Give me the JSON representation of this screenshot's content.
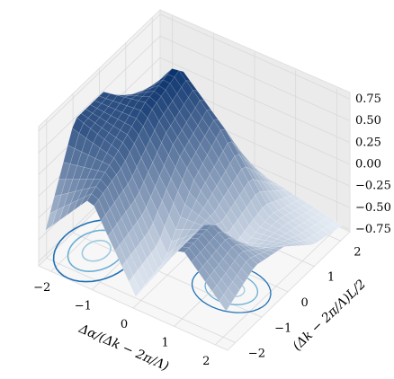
{
  "chart_data": {
    "type": "surface",
    "colormap": "Blues",
    "grid": true,
    "xlabel": "Δα/(Δk − 2π/Λ)",
    "ylabel": "(Δk − 2π/Λ)L/2",
    "zlabel": "",
    "xlim": [
      -2.3,
      2.3
    ],
    "ylim": [
      -2.3,
      2.3
    ],
    "zlim": [
      -0.8,
      0.8
    ],
    "x_ticks": [
      {
        "value": -2,
        "label": "−2"
      },
      {
        "value": -1,
        "label": "−1"
      },
      {
        "value": 0,
        "label": "0"
      },
      {
        "value": 1,
        "label": "1"
      },
      {
        "value": 2,
        "label": "2"
      }
    ],
    "y_ticks": [
      {
        "value": -2,
        "label": "−2"
      },
      {
        "value": -1,
        "label": "−1"
      },
      {
        "value": 0,
        "label": "0"
      },
      {
        "value": 1,
        "label": "1"
      },
      {
        "value": 2,
        "label": "2"
      }
    ],
    "z_ticks": [
      {
        "value": 0.75,
        "label": "0.75"
      },
      {
        "value": 0.5,
        "label": "0.50"
      },
      {
        "value": 0.25,
        "label": "0.25"
      },
      {
        "value": 0.0,
        "label": "0.00"
      },
      {
        "value": -0.25,
        "label": "−0.25"
      },
      {
        "value": -0.5,
        "label": "−0.50"
      },
      {
        "value": -0.75,
        "label": "−0.75"
      }
    ],
    "surface_samples": {
      "x": [
        -2.2,
        -1.1,
        0,
        1.1,
        2.2
      ],
      "y": [
        -2.2,
        -1.1,
        0,
        1.1,
        2.2
      ],
      "z_rows": [
        [
          -0.4,
          0.2,
          -0.7,
          0.1,
          -0.4
        ],
        [
          0.55,
          0.35,
          -0.6,
          0.1,
          -0.2
        ],
        [
          0.55,
          0.65,
          0.0,
          -0.55,
          -0.3
        ],
        [
          0.05,
          0.8,
          0.3,
          -0.45,
          -0.6
        ],
        [
          -0.1,
          -0.2,
          -0.5,
          -0.6,
          -0.7
        ]
      ]
    },
    "contour_on_floor": true
  }
}
